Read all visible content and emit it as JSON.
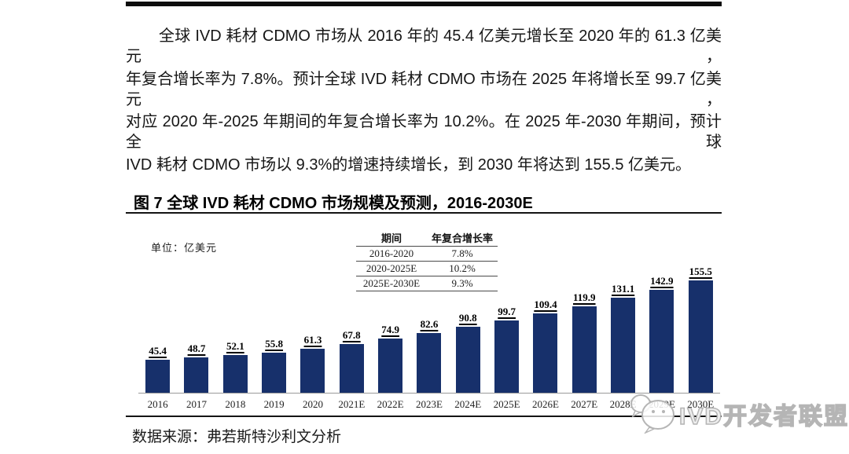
{
  "paragraph": {
    "lines": [
      "全球 IVD 耗材 CDMO 市场从 2016 年的 45.4 亿美元增长至 2020 年的 61.3 亿美元，",
      "年复合增长率为 7.8%。预计全球 IVD 耗材 CDMO 市场在 2025 年将增长至 99.7 亿美元，",
      "对应 2020 年-2025 年期间的年复合增长率为 10.2%。在 2025 年-2030 年期间，预计全球",
      "IVD 耗材 CDMO 市场以 9.3%的增速持续增长，到 2030 年将达到 155.5 亿美元。"
    ]
  },
  "figure": {
    "title": "图 7 全球 IVD 耗材 CDMO 市场规模及预测，2016-2030E",
    "unit_label": "单位：亿美元",
    "source": "数据来源：弗若斯特沙利文分析"
  },
  "cagr_table": {
    "headers": [
      "期间",
      "年复合增长率"
    ],
    "rows": [
      [
        "2016-2020",
        "7.8%"
      ],
      [
        "2020-2025E",
        "10.2%"
      ],
      [
        "2025E-2030E",
        "9.3%"
      ]
    ]
  },
  "chart_data": {
    "type": "bar",
    "title": "全球 IVD 耗材 CDMO 市场规模及预测，2016-2030E",
    "unit": "亿美元",
    "categories": [
      "2016",
      "2017",
      "2018",
      "2019",
      "2020",
      "2021E",
      "2022E",
      "2023E",
      "2024E",
      "2025E",
      "2026E",
      "2027E",
      "2028E",
      "2029E",
      "2030E"
    ],
    "values": [
      45.4,
      48.7,
      52.1,
      55.8,
      61.3,
      67.8,
      74.9,
      82.6,
      90.8,
      99.7,
      109.4,
      119.9,
      131.1,
      142.9,
      155.5
    ],
    "bar_color": "#17306B",
    "value_labels": true,
    "ylim": [
      0,
      160
    ],
    "grid": false,
    "legend": "none"
  },
  "watermark": {
    "text": "IVD开发者联盟",
    "logo": "chat-bubbles-logo",
    "color": "#b5b5b5"
  }
}
